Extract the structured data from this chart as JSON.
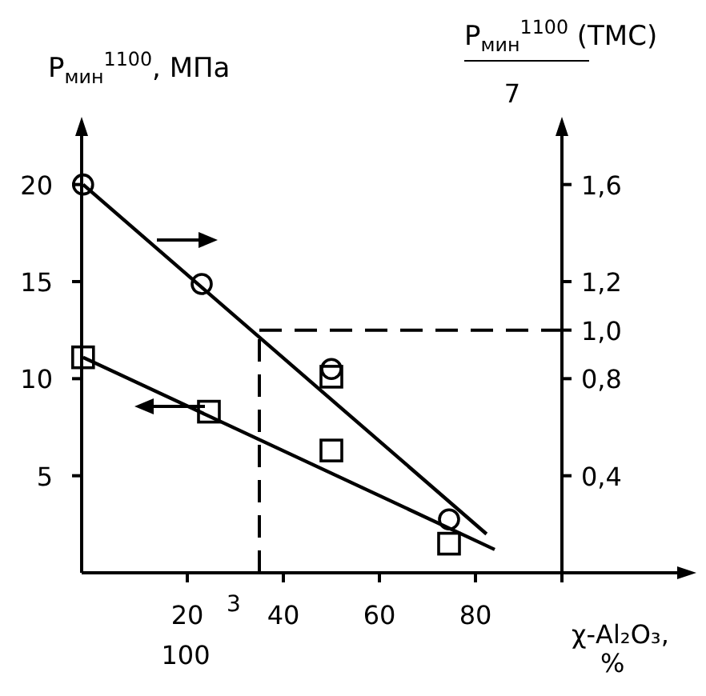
{
  "chart_data": {
    "type": "scatter",
    "ylabel": "P$_{мин}$$^{1100}$, МПа",
    "y2label": "P$_{мин}$$^{1100}$ (ТМС)",
    "xlabel": "χ-Al₂O₃, %",
    "annotations": [
      "7",
      "3",
      "100"
    ],
    "xlim": [
      -2,
      122
    ],
    "xticks": [
      20,
      40,
      60,
      80,
      {
        "value": 98,
        "label": null
      }
    ],
    "ylim": [
      0,
      22.5
    ],
    "yticks": [
      5,
      10,
      15,
      20
    ],
    "y2lim": [
      0,
      1.8
    ],
    "y2ticks": [
      {
        "value": 0.4,
        "label": "0,4"
      },
      {
        "value": 0.8,
        "label": "0,8"
      },
      {
        "value": 1.0,
        "label": "1,0"
      },
      {
        "value": 1.2,
        "label": "1,2"
      },
      {
        "value": 1.6,
        "label": "1,6"
      }
    ],
    "series": [
      {
        "marker": "circle",
        "axis": "y2",
        "color": "#000000",
        "x": [
          -1.7,
          23,
          50,
          74.5
        ],
        "values": [
          1.6,
          1.19,
          0.84,
          0.22
        ]
      },
      {
        "marker": "square",
        "axis": "y",
        "color": "#000000",
        "x": [
          -1.7,
          24.5,
          50,
          50,
          74.5
        ],
        "values": [
          11.1,
          8.3,
          10.1,
          6.3,
          1.5
        ]
      },
      {
        "type": "line",
        "line_style": "solid",
        "axis": "y2",
        "color": "#000000",
        "x": [
          -1.7,
          82.3
        ],
        "values": [
          1.6,
          0.16
        ]
      },
      {
        "type": "line",
        "line_style": "solid",
        "axis": "y",
        "color": "#000000",
        "x": [
          -1.7,
          84
        ],
        "values": [
          11.1,
          1.2
        ]
      }
    ],
    "ref_lines": [
      {
        "axis": "x",
        "value": 35,
        "line_style": "dashed",
        "color": "#000000"
      },
      {
        "axis": "y2",
        "value": 1.0,
        "line_style": "dashed",
        "color": "#000000"
      }
    ]
  }
}
